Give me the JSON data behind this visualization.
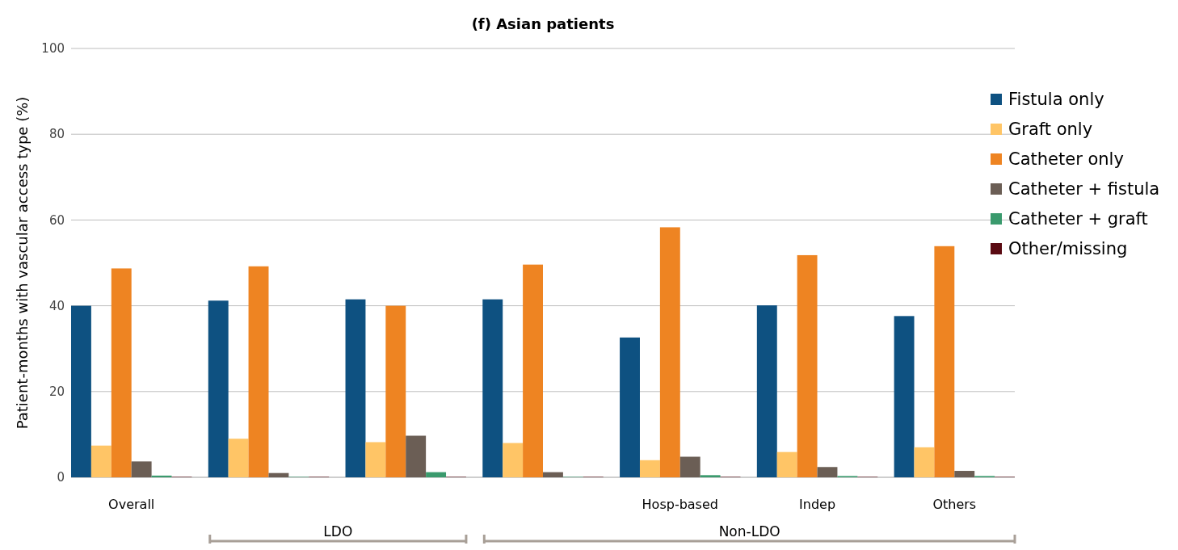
{
  "chart_data": {
    "type": "bar",
    "title": "(f)    Asian patients",
    "ylabel": "Patient-months with vascular access type (%)",
    "categories": [
      "Overall",
      null,
      null,
      null,
      "Hosp-based",
      "Indep",
      "Others"
    ],
    "series": [
      {
        "name": "Fistula only",
        "color": "#0e5181",
        "values": [
          40.0,
          41.2,
          41.5,
          41.5,
          32.6,
          40.1,
          37.6
        ]
      },
      {
        "name": "Graft only",
        "color": "#ffc566",
        "values": [
          7.4,
          9.0,
          8.2,
          8.0,
          4.0,
          5.9,
          7.0
        ]
      },
      {
        "name": "Catheter only",
        "color": "#ee8422",
        "values": [
          48.7,
          49.2,
          40.0,
          49.6,
          58.3,
          51.8,
          53.9
        ]
      },
      {
        "name": "Catheter + fistula",
        "color": "#6b5e55",
        "values": [
          3.7,
          1.0,
          9.7,
          1.2,
          4.8,
          2.4,
          1.5
        ]
      },
      {
        "name": "Catheter + graft",
        "color": "#3a9a6d",
        "values": [
          0.4,
          0.1,
          1.2,
          0.1,
          0.5,
          0.3,
          0.3
        ]
      },
      {
        "name": "Other/missing",
        "color": "#5a0a12",
        "values": [
          0.1,
          0.1,
          0.1,
          0.1,
          0.1,
          0.1,
          0.1
        ]
      }
    ],
    "ylim": [
      0,
      100
    ],
    "yticks": [
      0,
      20,
      40,
      60,
      80,
      100
    ],
    "grid": "y",
    "legend": "right",
    "annotations": [
      "LDO",
      "Non-LDO"
    ]
  }
}
